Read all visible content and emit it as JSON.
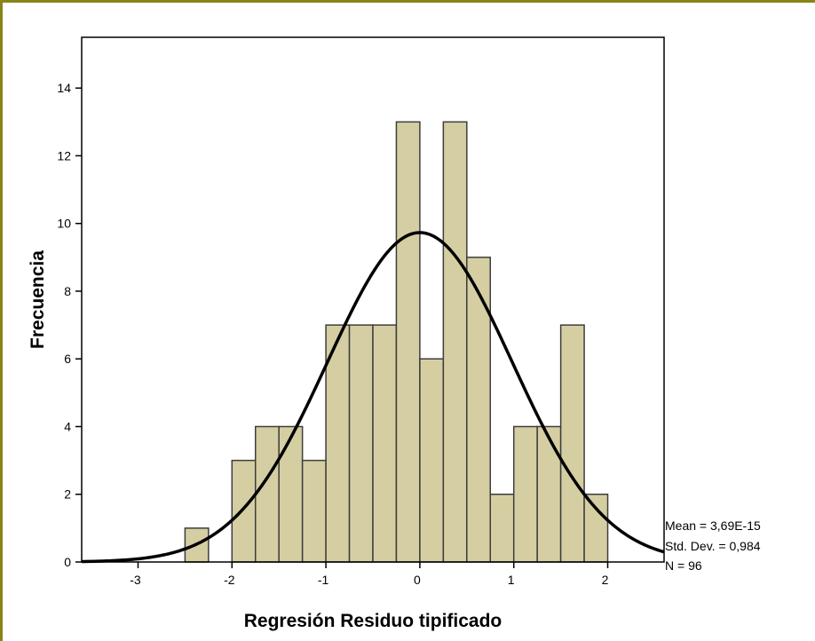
{
  "chart_data": {
    "type": "bar",
    "subtype": "histogram-with-normal-curve",
    "xlabel": "Regresión Residuo tipificado",
    "ylabel": "Frecuencia",
    "xlim": [
      -3.6,
      2.6
    ],
    "ylim": [
      0,
      15.5
    ],
    "xticks": [
      -3,
      -2,
      -1,
      0,
      1,
      2
    ],
    "xtick_labels": [
      "-3",
      "-2",
      "-1",
      "0",
      "1",
      "2"
    ],
    "yticks": [
      0,
      2,
      4,
      6,
      8,
      10,
      12,
      14
    ],
    "ytick_labels": [
      "0",
      "2",
      "4",
      "6",
      "8",
      "10",
      "12",
      "14"
    ],
    "bin_width": 0.25,
    "bins": [
      {
        "x0": -2.5,
        "x1": -2.25,
        "count": 1
      },
      {
        "x0": -2.0,
        "x1": -1.75,
        "count": 3
      },
      {
        "x0": -1.75,
        "x1": -1.5,
        "count": 4
      },
      {
        "x0": -1.5,
        "x1": -1.25,
        "count": 4
      },
      {
        "x0": -1.25,
        "x1": -1.0,
        "count": 3
      },
      {
        "x0": -1.0,
        "x1": -0.75,
        "count": 7
      },
      {
        "x0": -0.75,
        "x1": -0.5,
        "count": 7
      },
      {
        "x0": -0.5,
        "x1": -0.25,
        "count": 7
      },
      {
        "x0": -0.25,
        "x1": 0.0,
        "count": 13
      },
      {
        "x0": 0.0,
        "x1": 0.25,
        "count": 6
      },
      {
        "x0": 0.25,
        "x1": 0.5,
        "count": 13
      },
      {
        "x0": 0.5,
        "x1": 0.75,
        "count": 9
      },
      {
        "x0": 0.75,
        "x1": 1.0,
        "count": 2
      },
      {
        "x0": 1.0,
        "x1": 1.25,
        "count": 4
      },
      {
        "x0": 1.25,
        "x1": 1.5,
        "count": 4
      },
      {
        "x0": 1.5,
        "x1": 1.75,
        "count": 7
      },
      {
        "x0": 1.75,
        "x1": 2.0,
        "count": 2
      }
    ],
    "normal_curve": {
      "mean": 3.69e-15,
      "std": 0.984,
      "n": 96
    },
    "stats_lines": [
      "Mean = 3,69E-15",
      "Std. Dev. = 0,984",
      "N = 96"
    ],
    "grid": false,
    "colors": {
      "bar_fill": "#d5cea3",
      "bar_stroke": "#3d3d3d",
      "curve": "#000000",
      "frame_border": "#8a8418"
    }
  }
}
